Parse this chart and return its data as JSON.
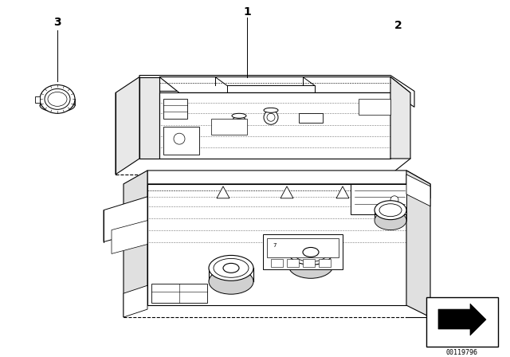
{
  "bg_color": "#ffffff",
  "lc": "#000000",
  "label_1": "1",
  "label_2": "2",
  "label_3": "3",
  "catalog_number": "00119796",
  "fig_width": 6.4,
  "fig_height": 4.48,
  "dpi": 100
}
